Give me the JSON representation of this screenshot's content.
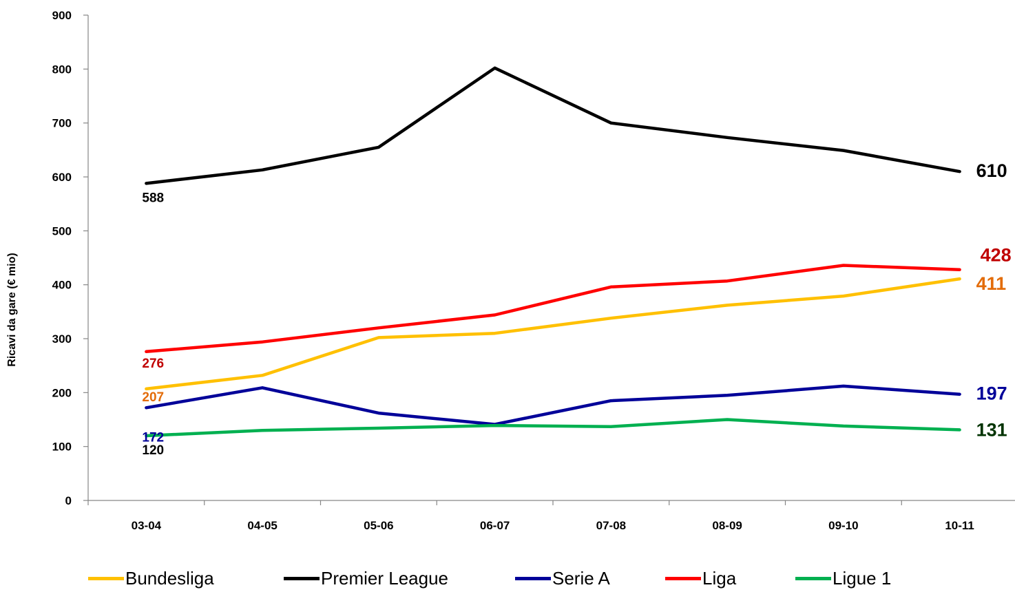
{
  "chart_data": {
    "type": "line",
    "title": "",
    "xlabel": "",
    "ylabel": "Ricavi da gare (€ mio)",
    "ylim": [
      0,
      900
    ],
    "yticks": [
      0,
      100,
      200,
      300,
      400,
      500,
      600,
      700,
      800,
      900
    ],
    "categories": [
      "03-04",
      "04-05",
      "05-06",
      "06-07",
      "07-08",
      "08-09",
      "09-10",
      "10-11"
    ],
    "grid": false,
    "legend_position": "bottom",
    "series": [
      {
        "name": "Bundesliga",
        "color": "#FFC000",
        "label_color": "#E36C09",
        "values": [
          207,
          232,
          302,
          310,
          338,
          362,
          379,
          411
        ],
        "start_label": "207",
        "end_label": "411"
      },
      {
        "name": "Premier League",
        "color": "#000000",
        "label_color": "#000000",
        "values": [
          588,
          613,
          655,
          802,
          700,
          673,
          649,
          610
        ],
        "start_label": "588",
        "end_label": "610"
      },
      {
        "name": "Serie A",
        "color": "#000099",
        "label_color": "#000099",
        "values": [
          172,
          209,
          162,
          141,
          185,
          195,
          212,
          197
        ],
        "start_label": "172",
        "end_label": "197"
      },
      {
        "name": "Liga",
        "color": "#FF0000",
        "label_color": "#C00000",
        "values": [
          276,
          294,
          320,
          344,
          396,
          407,
          436,
          428
        ],
        "start_label": "276",
        "end_label": "428"
      },
      {
        "name": "Ligue 1",
        "color": "#00B050",
        "label_color": "#003300",
        "values": [
          120,
          130,
          134,
          139,
          137,
          150,
          138,
          131
        ],
        "start_label": "120",
        "end_label": "131"
      }
    ]
  }
}
